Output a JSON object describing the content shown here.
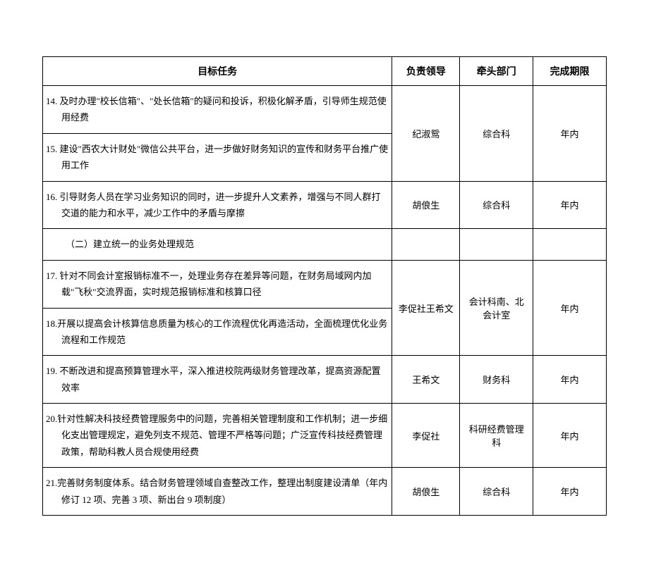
{
  "headers": {
    "task": "目标任务",
    "leader": "负责领导",
    "department": "牵头部门",
    "deadline": "完成期限"
  },
  "rows": [
    {
      "task": "14. 及时办理\"校长信箱\"、\"处长信箱\"的疑问和投诉，积极化解矛盾，引导师生规范使用经费",
      "leader": "纪淑鸳",
      "department": "综合科",
      "deadline": "年内",
      "rowspan_leader": 2,
      "rowspan_dept": 2,
      "rowspan_deadline": 2
    },
    {
      "task": "15. 建设\"西农大计财处\"微信公共平台，进一步做好财务知识的宣传和财务平台推广使用工作"
    },
    {
      "task": "16. 引导财务人员在学习业务知识的同时，进一步提升人文素养，增强与不同人群打交道的能力和水平，减少工作中的矛盾与摩擦",
      "leader": "胡俍生",
      "department": "综合科",
      "deadline": "年内"
    },
    {
      "task": "（二）建立统一的业务处理规范",
      "section": true
    },
    {
      "task": "17. 针对不同会计室报销标准不一，处理业务存在差异等问题，在财务局域网内加载\"飞秋\"交流界面，实时规范报销标准和核算口径",
      "leader": "李促社王希文",
      "department": "会计科南、北会计室",
      "deadline": "年内",
      "rowspan_leader": 2,
      "rowspan_dept": 2,
      "rowspan_deadline": 2
    },
    {
      "task": "18.开展以提高会计核算信息质量为核心的工作流程优化再造活动，全面梳理优化业务流程和工作规范"
    },
    {
      "task": "19. 不断改进和提高预算管理水平，深入推进校院两级财务管理改革，提高资源配置效率",
      "leader": "王希文",
      "department": "财务科",
      "deadline": "年内"
    },
    {
      "task": "20.针对性解决科技经费管理服务中的问题，完善相关管理制度和工作机制；进一步细化支出管理规定，避免列支不规范、管理不严格等问题；广泛宣传科技经费管理政策，帮助科教人员合规使用经费",
      "leader": "李促社",
      "department": "科研经费管理科",
      "deadline": "年内"
    },
    {
      "task": "21.完善财务制度体系。结合财务管理领域自查整改工作，整理出制度建设清单（年内修订 12 项、完善 3 项、新出台 9 项制度）",
      "leader": "胡俍生",
      "department": "综合科",
      "deadline": "年内"
    }
  ]
}
